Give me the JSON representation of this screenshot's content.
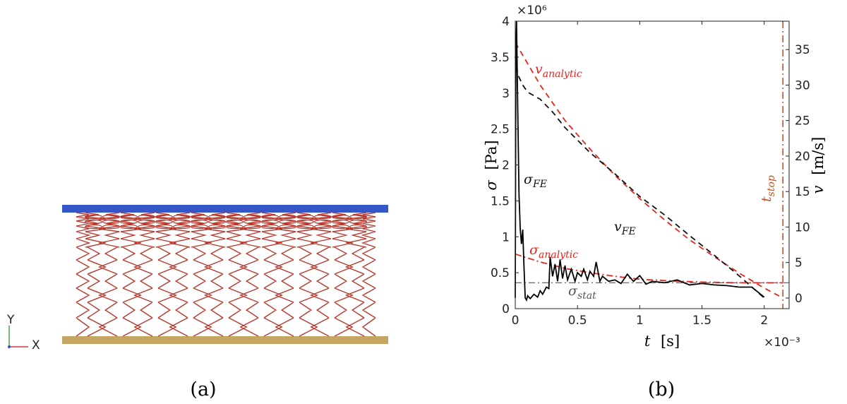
{
  "panel_a": {
    "caption": "(a)",
    "axis_triad": {
      "y_label": "Y",
      "x_label": "X"
    },
    "colors": {
      "top_plate": "#3357c8",
      "bottom_plate": "#c4a662",
      "springs": "#b8392e"
    }
  },
  "panel_b": {
    "caption": "(b)",
    "y_exponent": "×10⁶",
    "x_exponent": "×10⁻³",
    "left_axis": {
      "symbol": "σ",
      "unit": "[Pa]"
    },
    "right_axis": {
      "symbol": "v",
      "unit": "[m/s]"
    },
    "x_axis": {
      "symbol": "t",
      "unit": "[s]"
    },
    "labels": {
      "v_analytic": {
        "main": "v",
        "sub": "analytic"
      },
      "v_fe": {
        "main": "v",
        "sub": "FE"
      },
      "sigma_fe": {
        "main": "σ",
        "sub": "FE"
      },
      "sigma_analytic": {
        "main": "σ",
        "sub": "analytic"
      },
      "sigma_stat": {
        "main": "σ",
        "sub": "stat"
      },
      "t_stop": {
        "main": "t",
        "sub": "stop"
      }
    }
  },
  "chart_data": {
    "type": "line",
    "xlim": [
      0,
      2.2
    ],
    "ylim_left": [
      0,
      4
    ],
    "ylim_right": [
      -1.5,
      39
    ],
    "x_ticks": [
      "0",
      "0.5",
      "1",
      "1.5",
      "2"
    ],
    "x_tick_values": [
      0,
      0.5,
      1,
      1.5,
      2
    ],
    "y_left_ticks": [
      "0",
      "0.5",
      "1",
      "1.5",
      "2",
      "2.5",
      "3",
      "3.5",
      "4"
    ],
    "y_left_tick_values": [
      0,
      0.5,
      1,
      1.5,
      2,
      2.5,
      3,
      3.5,
      4
    ],
    "y_right_ticks": [
      "0",
      "5",
      "10",
      "15",
      "20",
      "25",
      "30",
      "35"
    ],
    "y_right_tick_values": [
      0,
      5,
      10,
      15,
      20,
      25,
      30,
      35
    ],
    "t_stop": 2.15,
    "sigma_stat": 0.36,
    "series": [
      {
        "key": "v_analytic",
        "axis": "right",
        "color": "#e8231d",
        "dash": "8,6",
        "x": [
          0,
          0.2,
          0.4,
          0.6,
          0.8,
          1.0,
          1.2,
          1.4,
          1.6,
          1.8,
          2.0,
          2.15
        ],
        "y": [
          36,
          30,
          25,
          21,
          17.3,
          14,
          11,
          8.2,
          5.8,
          3.5,
          1.4,
          0
        ]
      },
      {
        "key": "v_fe",
        "axis": "right",
        "color": "#111111",
        "dash": "8,6",
        "x": [
          0,
          0.02,
          0.06,
          0.1,
          0.2,
          0.3,
          0.4,
          0.6,
          0.8,
          1.0,
          1.2,
          1.4,
          1.6,
          1.8,
          2.0
        ],
        "y": [
          34,
          31.5,
          30,
          29,
          28,
          26.2,
          24,
          20.5,
          17.5,
          14.3,
          11.7,
          8.8,
          6,
          3.1,
          0
        ]
      },
      {
        "key": "sigma_analytic",
        "axis": "left",
        "color": "#e8231d",
        "dash": "9,4,2,4",
        "x": [
          0,
          0.2,
          0.4,
          0.6,
          0.8,
          1.0,
          1.2,
          1.5,
          1.8,
          2.15
        ],
        "y": [
          0.76,
          0.65,
          0.56,
          0.5,
          0.45,
          0.41,
          0.39,
          0.37,
          0.36,
          0.36
        ]
      },
      {
        "key": "sigma_fe",
        "axis": "left",
        "color": "#000000",
        "dash": "",
        "x": [
          0,
          0.005,
          0.01,
          0.02,
          0.03,
          0.04,
          0.05,
          0.06,
          0.07,
          0.08,
          0.09,
          0.1,
          0.12,
          0.15,
          0.18,
          0.2,
          0.22,
          0.25,
          0.27,
          0.28,
          0.3,
          0.32,
          0.34,
          0.36,
          0.38,
          0.4,
          0.42,
          0.45,
          0.48,
          0.5,
          0.53,
          0.55,
          0.58,
          0.6,
          0.63,
          0.65,
          0.68,
          0.7,
          0.75,
          0.8,
          0.85,
          0.9,
          0.95,
          1.0,
          1.05,
          1.1,
          1.2,
          1.3,
          1.4,
          1.5,
          1.6,
          1.7,
          1.8,
          1.9,
          2.0
        ],
        "y": [
          0.15,
          3.6,
          4.0,
          2.8,
          1.6,
          1.1,
          0.9,
          1.1,
          0.6,
          0.15,
          0.12,
          0.18,
          0.14,
          0.2,
          0.16,
          0.25,
          0.2,
          0.3,
          0.28,
          0.72,
          0.45,
          0.62,
          0.38,
          0.68,
          0.42,
          0.6,
          0.4,
          0.55,
          0.38,
          0.5,
          0.45,
          0.55,
          0.4,
          0.52,
          0.45,
          0.65,
          0.38,
          0.45,
          0.38,
          0.4,
          0.35,
          0.48,
          0.38,
          0.46,
          0.34,
          0.38,
          0.36,
          0.4,
          0.33,
          0.35,
          0.33,
          0.32,
          0.3,
          0.3,
          0.16
        ]
      }
    ]
  }
}
